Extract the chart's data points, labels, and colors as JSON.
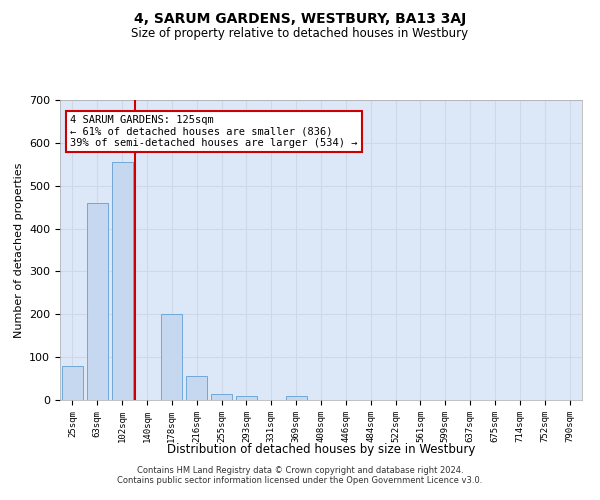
{
  "title": "4, SARUM GARDENS, WESTBURY, BA13 3AJ",
  "subtitle": "Size of property relative to detached houses in Westbury",
  "xlabel": "Distribution of detached houses by size in Westbury",
  "ylabel": "Number of detached properties",
  "footer_line1": "Contains HM Land Registry data © Crown copyright and database right 2024.",
  "footer_line2": "Contains public sector information licensed under the Open Government Licence v3.0.",
  "categories": [
    "25sqm",
    "63sqm",
    "102sqm",
    "140sqm",
    "178sqm",
    "216sqm",
    "255sqm",
    "293sqm",
    "331sqm",
    "369sqm",
    "408sqm",
    "446sqm",
    "484sqm",
    "522sqm",
    "561sqm",
    "599sqm",
    "637sqm",
    "675sqm",
    "714sqm",
    "752sqm",
    "790sqm"
  ],
  "values": [
    80,
    460,
    555,
    0,
    200,
    55,
    15,
    10,
    0,
    10,
    0,
    0,
    0,
    0,
    0,
    0,
    0,
    0,
    0,
    0,
    0
  ],
  "bar_color": "#c5d8f0",
  "bar_edge_color": "#6fa8d8",
  "red_line_x": 2.5,
  "annotation_text": "4 SARUM GARDENS: 125sqm\n← 61% of detached houses are smaller (836)\n39% of semi-detached houses are larger (534) →",
  "annotation_box_color": "#ffffff",
  "annotation_box_edge": "#cc0000",
  "red_line_color": "#cc0000",
  "grid_color": "#d0d8e8",
  "background_color": "#dce8f8",
  "ylim": [
    0,
    700
  ],
  "yticks": [
    0,
    100,
    200,
    300,
    400,
    500,
    600,
    700
  ]
}
